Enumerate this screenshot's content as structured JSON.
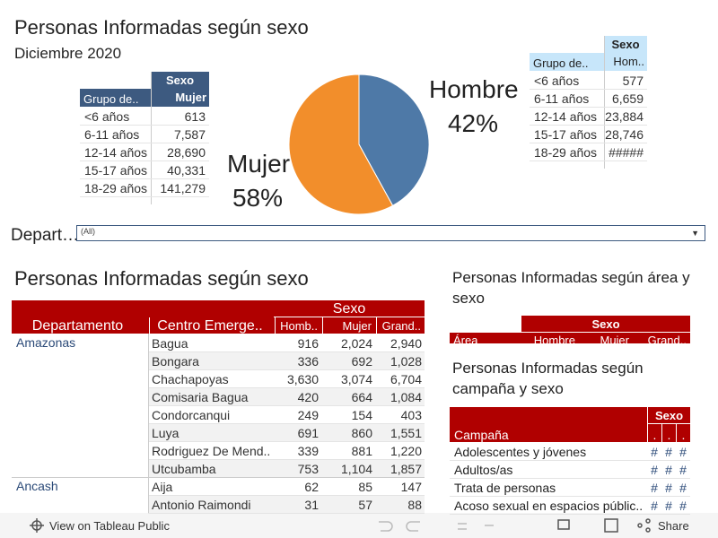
{
  "header": {
    "title": "Personas Informadas según sexo",
    "subtitle": "Diciembre 2020"
  },
  "table_mujer": {
    "group_header": "Sexo",
    "row_header": "Grupo de..",
    "column": "Mujer",
    "rows": [
      [
        "<6 años",
        "613"
      ],
      [
        "6-11 años",
        "7,587"
      ],
      [
        "12-14 años",
        "28,690"
      ],
      [
        "15-17 años",
        "40,331"
      ],
      [
        "18-29 años",
        "141,279"
      ]
    ]
  },
  "pie": {
    "type": "pie",
    "labels": [
      "Hombre",
      "Mujer"
    ],
    "values": [
      42,
      58
    ],
    "value_labels": [
      "42%",
      "58%"
    ],
    "colors": [
      "#4e79a7",
      "#f28e2b"
    ]
  },
  "table_hombre": {
    "group_header": "Sexo",
    "row_header": "Grupo de..",
    "column": "Hom..",
    "rows": [
      [
        "<6 años",
        "577"
      ],
      [
        "6-11 años",
        "6,659"
      ],
      [
        "12-14 años",
        "23,884"
      ],
      [
        "15-17 años",
        "28,746"
      ],
      [
        "18-29 años",
        "#####"
      ]
    ]
  },
  "filter": {
    "label": "Depart…",
    "value": "(All)"
  },
  "main": {
    "title": "Personas Informadas según sexo",
    "group_header": "Sexo",
    "columns": [
      "Departamento",
      "Centro Emerge..",
      "Homb..",
      "Mujer",
      "Grand.."
    ],
    "groups": [
      {
        "name": "Amazonas",
        "rows": [
          [
            "Bagua",
            "916",
            "2,024",
            "2,940"
          ],
          [
            "Bongara",
            "336",
            "692",
            "1,028"
          ],
          [
            "Chachapoyas",
            "3,630",
            "3,074",
            "6,704"
          ],
          [
            "Comisaria Bagua",
            "420",
            "664",
            "1,084"
          ],
          [
            "Condorcanqui",
            "249",
            "154",
            "403"
          ],
          [
            "Luya",
            "691",
            "860",
            "1,551"
          ],
          [
            "Rodriguez De Mend..",
            "339",
            "881",
            "1,220"
          ],
          [
            "Utcubamba",
            "753",
            "1,104",
            "1,857"
          ]
        ]
      },
      {
        "name": "Ancash",
        "rows": [
          [
            "Aija",
            "62",
            "85",
            "147"
          ],
          [
            "Antonio Raimondi",
            "31",
            "57",
            "88"
          ]
        ]
      }
    ]
  },
  "area": {
    "title": "Personas Informadas según área y sexo",
    "group_header": "Sexo",
    "columns": [
      "Área",
      "Hombre",
      "Mujer",
      "Grand.."
    ]
  },
  "campaign": {
    "title": "Personas Informadas según campaña y sexo",
    "group_header": "Sexo",
    "columns": [
      "Campaña",
      ".",
      ".",
      "."
    ],
    "rows": [
      [
        "Adolescentes y jóvenes",
        "#",
        "#",
        "#"
      ],
      [
        "Adultos/as",
        "#",
        "#",
        "#"
      ],
      [
        "Trata de personas",
        "#",
        "#",
        "#"
      ],
      [
        "Acoso sexual en espacios públic..",
        "#",
        "#",
        "#"
      ]
    ]
  },
  "footer": {
    "link": "View on Tableau Public",
    "share": "Share"
  }
}
